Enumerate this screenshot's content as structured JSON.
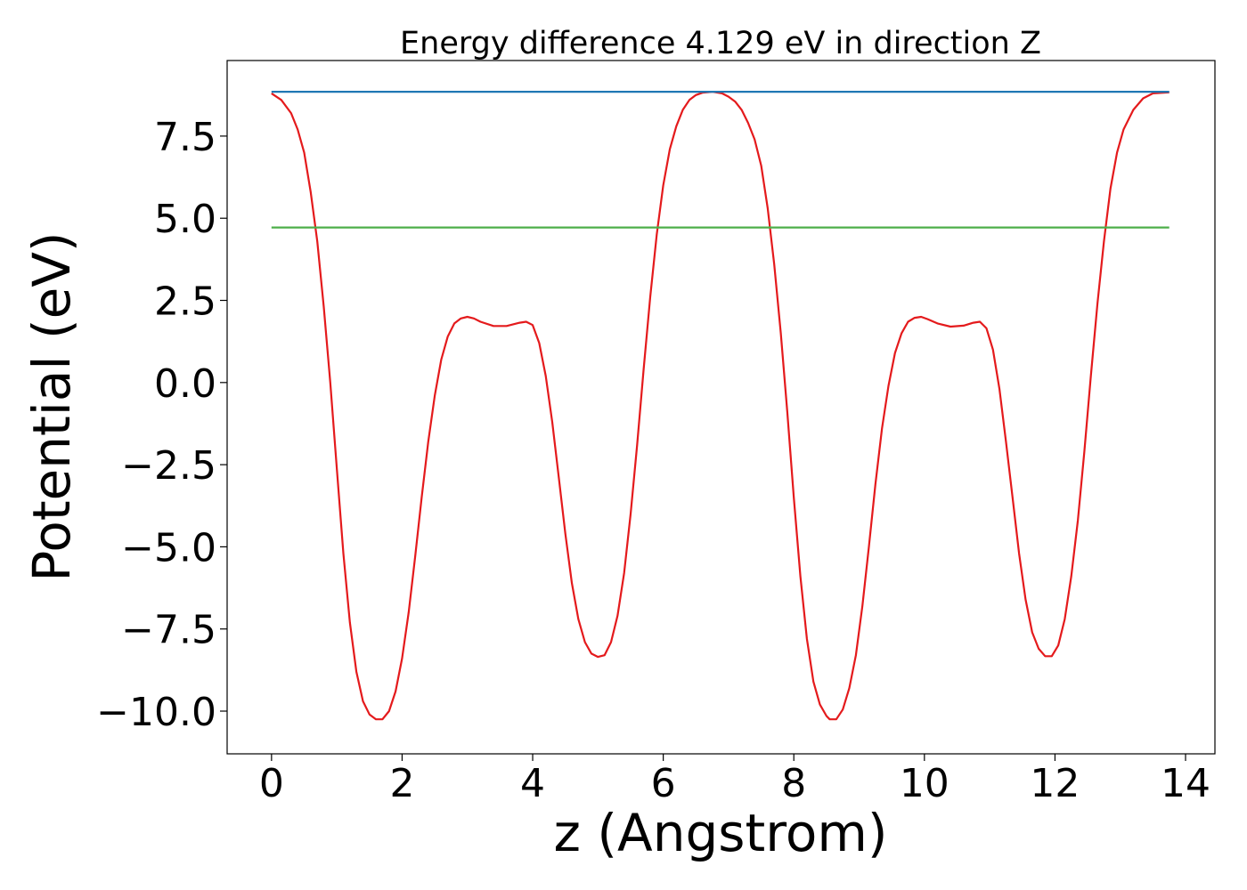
{
  "chart_data": {
    "type": "line",
    "title": "Energy difference 4.129 eV in direction Z",
    "xlabel": "z (Angstrom)",
    "ylabel": "Potential (eV)",
    "xlim": [
      -0.68,
      14.45
    ],
    "ylim": [
      -11.3,
      9.8
    ],
    "x_ticks": [
      0,
      2,
      4,
      6,
      8,
      10,
      12,
      14
    ],
    "x_tick_labels": [
      "0",
      "2",
      "4",
      "6",
      "8",
      "10",
      "12",
      "14"
    ],
    "y_ticks": [
      7.5,
      5.0,
      2.5,
      0.0,
      -2.5,
      -5.0,
      -7.5,
      -10.0
    ],
    "y_tick_labels": [
      "7.5",
      "5.0",
      "2.5",
      "0.0",
      "−2.5",
      "−5.0",
      "−7.5",
      "−10.0"
    ],
    "grid": false,
    "series": [
      {
        "color": "#e41a1c",
        "kind": "curve",
        "points": [
          [
            0.0,
            8.8
          ],
          [
            0.15,
            8.6
          ],
          [
            0.3,
            8.2
          ],
          [
            0.4,
            7.7
          ],
          [
            0.5,
            7.0
          ],
          [
            0.6,
            5.8
          ],
          [
            0.7,
            4.3
          ],
          [
            0.8,
            2.3
          ],
          [
            0.9,
            0.0
          ],
          [
            1.0,
            -2.6
          ],
          [
            1.1,
            -5.2
          ],
          [
            1.2,
            -7.3
          ],
          [
            1.3,
            -8.8
          ],
          [
            1.4,
            -9.7
          ],
          [
            1.5,
            -10.1
          ],
          [
            1.6,
            -10.25
          ],
          [
            1.7,
            -10.25
          ],
          [
            1.8,
            -10.0
          ],
          [
            1.9,
            -9.4
          ],
          [
            2.0,
            -8.4
          ],
          [
            2.1,
            -7.0
          ],
          [
            2.2,
            -5.3
          ],
          [
            2.3,
            -3.5
          ],
          [
            2.4,
            -1.8
          ],
          [
            2.5,
            -0.4
          ],
          [
            2.6,
            0.7
          ],
          [
            2.7,
            1.4
          ],
          [
            2.8,
            1.8
          ],
          [
            2.9,
            1.95
          ],
          [
            3.0,
            2.0
          ],
          [
            3.1,
            1.95
          ],
          [
            3.2,
            1.85
          ],
          [
            3.4,
            1.72
          ],
          [
            3.6,
            1.72
          ],
          [
            3.8,
            1.82
          ],
          [
            3.9,
            1.85
          ],
          [
            4.0,
            1.75
          ],
          [
            4.1,
            1.2
          ],
          [
            4.2,
            0.2
          ],
          [
            4.3,
            -1.2
          ],
          [
            4.4,
            -2.9
          ],
          [
            4.5,
            -4.6
          ],
          [
            4.6,
            -6.1
          ],
          [
            4.7,
            -7.2
          ],
          [
            4.8,
            -7.9
          ],
          [
            4.9,
            -8.25
          ],
          [
            5.0,
            -8.35
          ],
          [
            5.1,
            -8.3
          ],
          [
            5.2,
            -7.9
          ],
          [
            5.3,
            -7.1
          ],
          [
            5.4,
            -5.8
          ],
          [
            5.5,
            -4.0
          ],
          [
            5.6,
            -1.9
          ],
          [
            5.7,
            0.4
          ],
          [
            5.8,
            2.6
          ],
          [
            5.9,
            4.5
          ],
          [
            6.0,
            6.0
          ],
          [
            6.1,
            7.1
          ],
          [
            6.2,
            7.8
          ],
          [
            6.3,
            8.3
          ],
          [
            6.4,
            8.6
          ],
          [
            6.5,
            8.75
          ],
          [
            6.6,
            8.82
          ],
          [
            6.75,
            8.85
          ],
          [
            6.9,
            8.8
          ],
          [
            7.0,
            8.7
          ],
          [
            7.1,
            8.55
          ],
          [
            7.2,
            8.3
          ],
          [
            7.3,
            7.9
          ],
          [
            7.4,
            7.4
          ],
          [
            7.5,
            6.6
          ],
          [
            7.6,
            5.3
          ],
          [
            7.7,
            3.6
          ],
          [
            7.8,
            1.5
          ],
          [
            7.9,
            -0.9
          ],
          [
            8.0,
            -3.5
          ],
          [
            8.1,
            -5.9
          ],
          [
            8.2,
            -7.8
          ],
          [
            8.3,
            -9.1
          ],
          [
            8.4,
            -9.8
          ],
          [
            8.5,
            -10.15
          ],
          [
            8.55,
            -10.25
          ],
          [
            8.65,
            -10.25
          ],
          [
            8.75,
            -9.95
          ],
          [
            8.85,
            -9.3
          ],
          [
            8.95,
            -8.3
          ],
          [
            9.05,
            -6.8
          ],
          [
            9.15,
            -5.0
          ],
          [
            9.25,
            -3.1
          ],
          [
            9.35,
            -1.4
          ],
          [
            9.45,
            -0.1
          ],
          [
            9.55,
            0.9
          ],
          [
            9.65,
            1.5
          ],
          [
            9.75,
            1.85
          ],
          [
            9.85,
            1.97
          ],
          [
            9.95,
            2.0
          ],
          [
            10.05,
            1.93
          ],
          [
            10.2,
            1.8
          ],
          [
            10.4,
            1.7
          ],
          [
            10.6,
            1.73
          ],
          [
            10.75,
            1.82
          ],
          [
            10.85,
            1.85
          ],
          [
            10.95,
            1.65
          ],
          [
            11.05,
            1.0
          ],
          [
            11.15,
            -0.2
          ],
          [
            11.25,
            -1.8
          ],
          [
            11.35,
            -3.5
          ],
          [
            11.45,
            -5.2
          ],
          [
            11.55,
            -6.6
          ],
          [
            11.65,
            -7.6
          ],
          [
            11.75,
            -8.1
          ],
          [
            11.85,
            -8.33
          ],
          [
            11.95,
            -8.33
          ],
          [
            12.05,
            -8.0
          ],
          [
            12.15,
            -7.2
          ],
          [
            12.25,
            -5.9
          ],
          [
            12.35,
            -4.2
          ],
          [
            12.45,
            -2.1
          ],
          [
            12.55,
            0.2
          ],
          [
            12.65,
            2.4
          ],
          [
            12.75,
            4.3
          ],
          [
            12.85,
            5.9
          ],
          [
            12.95,
            7.0
          ],
          [
            13.05,
            7.7
          ],
          [
            13.2,
            8.3
          ],
          [
            13.35,
            8.65
          ],
          [
            13.5,
            8.8
          ],
          [
            13.75,
            8.83
          ]
        ]
      },
      {
        "color": "#1f77b4",
        "kind": "hline",
        "points": [
          [
            0.0,
            8.85
          ],
          [
            13.75,
            8.85
          ]
        ]
      },
      {
        "color": "#4daf4a",
        "kind": "hline",
        "points": [
          [
            0.0,
            4.72
          ],
          [
            13.75,
            4.72
          ]
        ]
      }
    ]
  }
}
